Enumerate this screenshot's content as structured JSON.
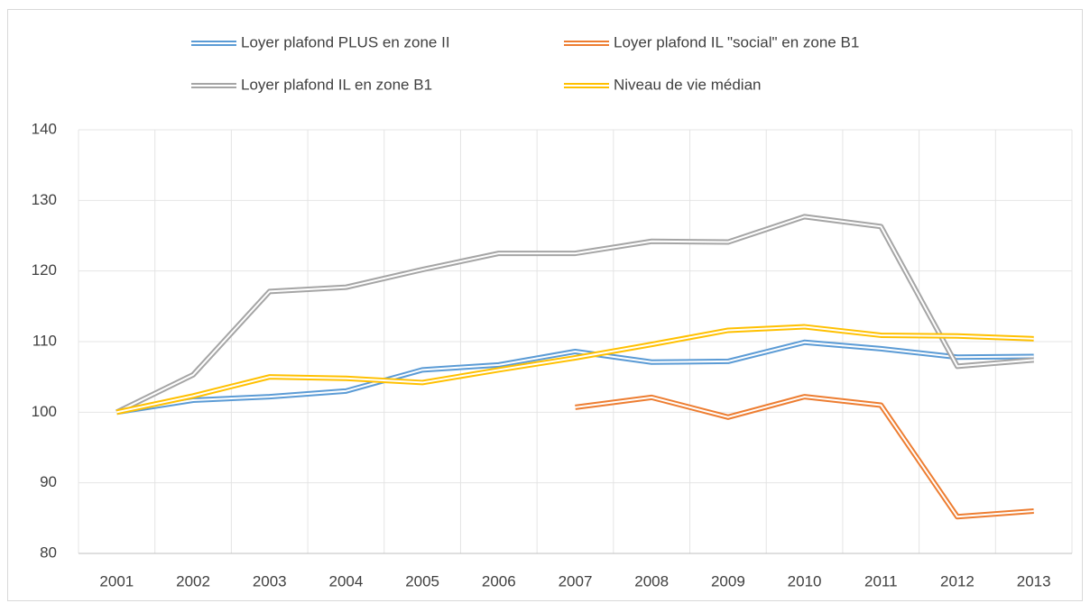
{
  "chart_data": {
    "type": "line",
    "categories": [
      "2001",
      "2002",
      "2003",
      "2004",
      "2005",
      "2006",
      "2007",
      "2008",
      "2009",
      "2010",
      "2011",
      "2012",
      "2013"
    ],
    "series": [
      {
        "name": "Loyer plafond PLUS en zone II",
        "color": "#5b9bd5",
        "values": [
          100,
          101.7,
          102.2,
          103,
          106,
          106.7,
          108.6,
          107.1,
          107.2,
          109.9,
          109,
          107.8,
          107.9
        ]
      },
      {
        "name": "Loyer plafond IL \"social\" en zone B1",
        "color": "#ed7d31",
        "values": [
          null,
          null,
          null,
          null,
          null,
          null,
          100.7,
          102.1,
          99.3,
          102.2,
          101,
          85.2,
          86
        ]
      },
      {
        "name": "Loyer plafond IL en zone B1",
        "color": "#a5a5a5",
        "values": [
          100,
          105.3,
          117.1,
          117.7,
          120.2,
          122.5,
          122.5,
          124.2,
          124.1,
          127.7,
          126.3,
          106.5,
          107.4
        ]
      },
      {
        "name": "Niveau de vie médian",
        "color": "#ffc000",
        "values": [
          100,
          102.3,
          105,
          104.8,
          104.2,
          106,
          107.7,
          109.6,
          111.6,
          112.1,
          110.9,
          110.8,
          110.4
        ]
      }
    ],
    "ylim": [
      80,
      140
    ],
    "yticks": [
      80,
      90,
      100,
      110,
      120,
      130,
      140
    ],
    "grid": true
  }
}
